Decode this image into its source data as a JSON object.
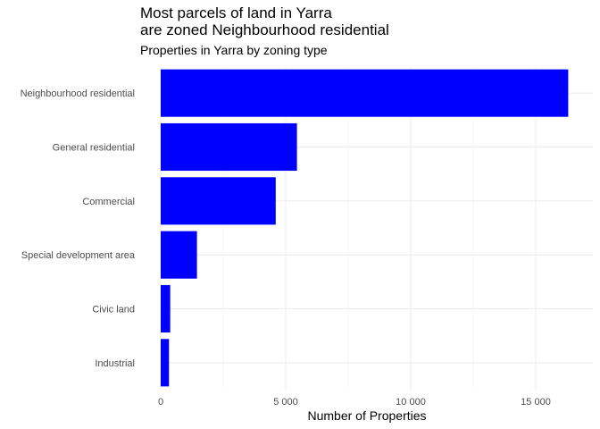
{
  "chart_data": {
    "type": "bar",
    "orientation": "horizontal",
    "title_lines": [
      "Most parcels of land in Yarra",
      "are zoned Neighbourhood residential"
    ],
    "subtitle": "Properties in Yarra by zoning type",
    "xlabel": "Number of Properties",
    "ylabel": "",
    "categories": [
      "Neighbourhood residential",
      "General residential",
      "Commercial",
      "Special development area",
      "Civic land",
      "Industrial"
    ],
    "values": [
      16300,
      5450,
      4600,
      1450,
      380,
      330
    ],
    "xlim": [
      0,
      17000
    ],
    "xticks": [
      0,
      5000,
      10000,
      15000
    ],
    "xtick_labels": [
      "0",
      "5 000",
      "10 000",
      "15 000"
    ],
    "bar_color": "#0000ff",
    "grid": true
  }
}
